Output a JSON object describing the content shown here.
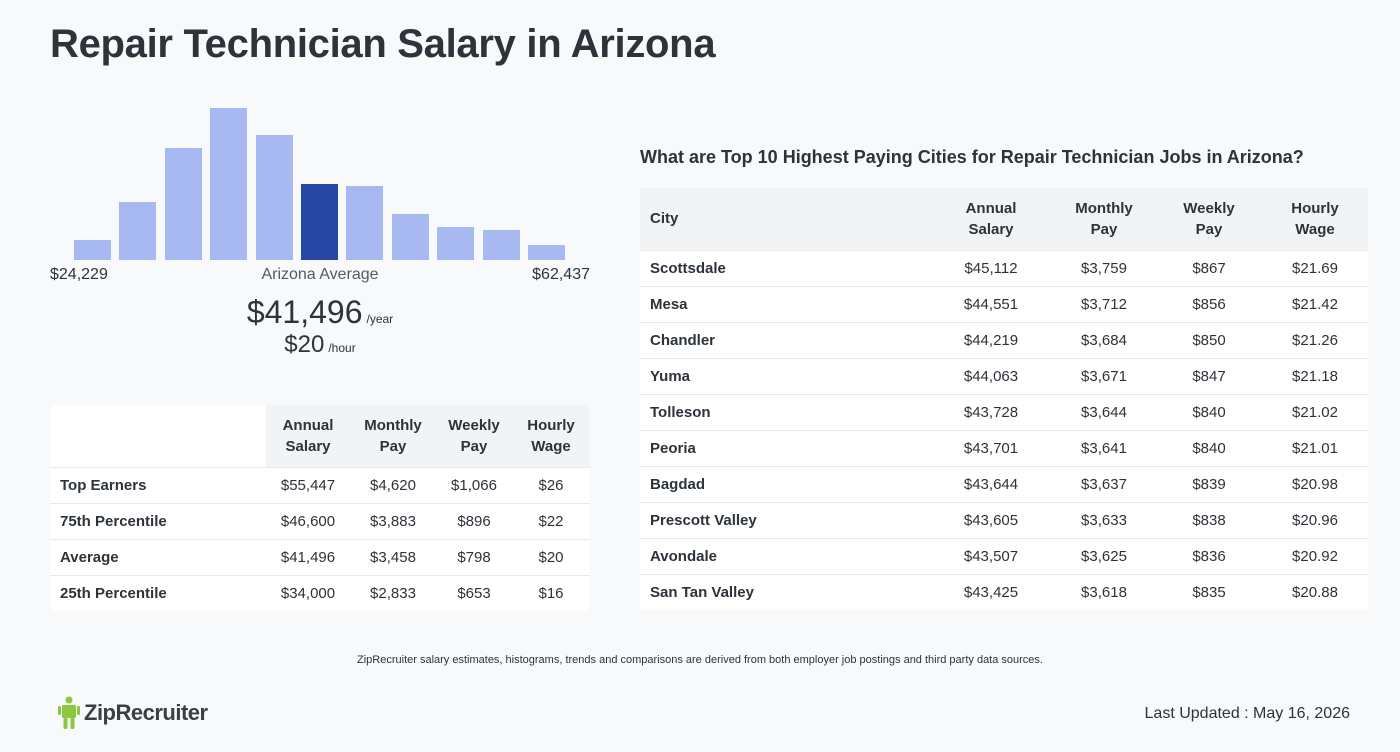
{
  "page": {
    "title": "Repair Technician Salary in Arizona"
  },
  "histogram": {
    "min_label": "$24,229",
    "max_label": "$62,437",
    "center_label": "Arizona Average",
    "active_index": 5,
    "bar_levels": [
      0.13,
      0.38,
      0.74,
      1.0,
      0.82,
      0.5,
      0.49,
      0.3,
      0.22,
      0.2,
      0.1
    ]
  },
  "average": {
    "annual": "$41,496",
    "annual_unit": "/year",
    "hourly": "$20",
    "hourly_unit": "/hour"
  },
  "percentile_table": {
    "headers": [
      "",
      "Annual Salary",
      "Monthly Pay",
      "Weekly Pay",
      "Hourly Wage"
    ],
    "rows": [
      [
        "Top Earners",
        "$55,447",
        "$4,620",
        "$1,066",
        "$26"
      ],
      [
        "75th Percentile",
        "$46,600",
        "$3,883",
        "$896",
        "$22"
      ],
      [
        "Average",
        "$41,496",
        "$3,458",
        "$798",
        "$20"
      ],
      [
        "25th Percentile",
        "$34,000",
        "$2,833",
        "$653",
        "$16"
      ]
    ]
  },
  "cities": {
    "heading": "What are Top 10 Highest Paying Cities for Repair Technician Jobs in Arizona?",
    "headers": [
      "City",
      "Annual Salary",
      "Monthly Pay",
      "Weekly Pay",
      "Hourly Wage"
    ],
    "rows": [
      [
        "Scottsdale",
        "$45,112",
        "$3,759",
        "$867",
        "$21.69"
      ],
      [
        "Mesa",
        "$44,551",
        "$3,712",
        "$856",
        "$21.42"
      ],
      [
        "Chandler",
        "$44,219",
        "$3,684",
        "$850",
        "$21.26"
      ],
      [
        "Yuma",
        "$44,063",
        "$3,671",
        "$847",
        "$21.18"
      ],
      [
        "Tolleson",
        "$43,728",
        "$3,644",
        "$840",
        "$21.02"
      ],
      [
        "Peoria",
        "$43,701",
        "$3,641",
        "$840",
        "$21.01"
      ],
      [
        "Bagdad",
        "$43,644",
        "$3,637",
        "$839",
        "$20.98"
      ],
      [
        "Prescott Valley",
        "$43,605",
        "$3,633",
        "$838",
        "$20.96"
      ],
      [
        "Avondale",
        "$43,507",
        "$3,625",
        "$836",
        "$20.92"
      ],
      [
        "San Tan Valley",
        "$43,425",
        "$3,618",
        "$835",
        "$20.88"
      ]
    ]
  },
  "footer": {
    "disclaimer": "ZipRecruiter salary estimates, histograms, trends and comparisons are derived from both employer job postings and third party data sources.",
    "logo_text": "ZipRecruiter",
    "logo_icon": "ziprecruiter-logo-icon",
    "last_updated": "Last Updated : May 16, 2026"
  },
  "colors": {
    "bar": "#a8b8f0",
    "bar_active": "#2747a4",
    "logo_green": "#8dc63f"
  }
}
